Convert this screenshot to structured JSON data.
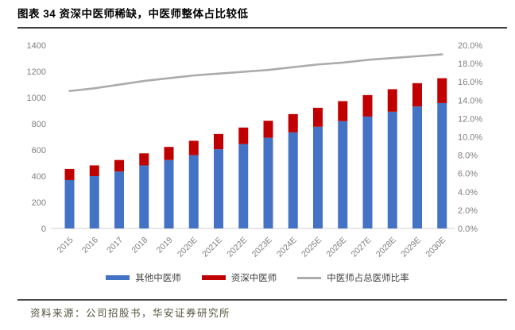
{
  "header": {
    "title": "图表 34 资深中医师稀缺，中医师整体占比较低"
  },
  "chart_data": {
    "type": "bar",
    "subtype": "stacked-bars-with-line",
    "categories": [
      "2015",
      "2016",
      "2017",
      "2018",
      "2019",
      "2020E",
      "2021E",
      "2022E",
      "2023E",
      "2024E",
      "2025E",
      "2026E",
      "2027E",
      "2028E",
      "2029E",
      "2030E"
    ],
    "series": [
      {
        "name": "其他中医师",
        "type": "bar",
        "axis": "left",
        "color": "#4472C4",
        "values": [
          370,
          400,
          435,
          482,
          523,
          560,
          605,
          645,
          693,
          734,
          777,
          820,
          855,
          892,
          932,
          958
        ]
      },
      {
        "name": "资深中医师",
        "type": "bar",
        "axis": "left",
        "color": "#C00000",
        "values": [
          85,
          82,
          88,
          92,
          100,
          110,
          117,
          126,
          130,
          140,
          145,
          153,
          164,
          172,
          178,
          190
        ]
      },
      {
        "name": "中医师占总医师比率",
        "type": "line",
        "axis": "right",
        "color": "#ABABAB",
        "values": [
          15.0,
          15.3,
          15.7,
          16.1,
          16.4,
          16.7,
          16.9,
          17.1,
          17.3,
          17.6,
          17.9,
          18.1,
          18.4,
          18.6,
          18.8,
          19.0
        ]
      }
    ],
    "left_axis": {
      "min": 0,
      "max": 1400,
      "step": 200,
      "ticks": [
        "0",
        "200",
        "400",
        "600",
        "800",
        "1000",
        "1200",
        "1400"
      ]
    },
    "right_axis": {
      "min": 0,
      "max": 20,
      "step": 2,
      "ticks": [
        "0.0%",
        "2.0%",
        "4.0%",
        "6.0%",
        "8.0%",
        "10.0%",
        "12.0%",
        "14.0%",
        "16.0%",
        "18.0%",
        "20.0%"
      ]
    },
    "title": "",
    "xlabel": "",
    "ylabel": "",
    "grid": false,
    "legend_position": "bottom",
    "axis_text_color": "#7f7f7f",
    "baseline_color": "#d9d9d9"
  },
  "footer": {
    "source": "资料来源：公司招股书，华安证券研究所"
  }
}
